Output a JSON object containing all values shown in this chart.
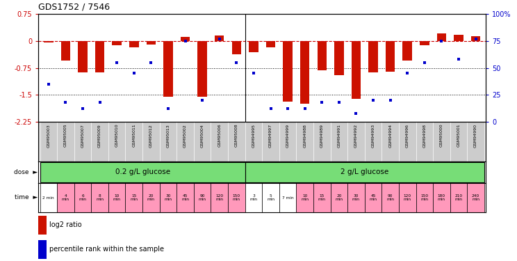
{
  "title": "GDS1752 / 7546",
  "samples": [
    "GSM95003",
    "GSM95005",
    "GSM95007",
    "GSM95009",
    "GSM95010",
    "GSM95011",
    "GSM95012",
    "GSM95013",
    "GSM95002",
    "GSM95004",
    "GSM95006",
    "GSM95008",
    "GSM94995",
    "GSM94997",
    "GSM94999",
    "GSM94988",
    "GSM94989",
    "GSM94991",
    "GSM94992",
    "GSM94993",
    "GSM94994",
    "GSM94996",
    "GSM94998",
    "GSM95000",
    "GSM95001",
    "GSM94990"
  ],
  "log2_ratio": [
    -0.05,
    -0.55,
    -0.88,
    -0.88,
    -0.12,
    -0.18,
    -0.1,
    -1.55,
    0.12,
    -1.55,
    0.15,
    -0.38,
    -0.32,
    -0.18,
    -1.68,
    -1.75,
    -0.82,
    -0.95,
    -1.62,
    -0.88,
    -0.85,
    -0.55,
    -0.12,
    0.2,
    0.17,
    0.14
  ],
  "percentile_rank": [
    35,
    18,
    12,
    18,
    55,
    45,
    55,
    12,
    75,
    20,
    77,
    55,
    45,
    12,
    12,
    12,
    18,
    18,
    8,
    20,
    20,
    45,
    55,
    75,
    58,
    77
  ],
  "time_labels": [
    "2 min",
    "4\nmin",
    "6\nmin",
    "8\nmin",
    "10\nmin",
    "15\nmin",
    "20\nmin",
    "30\nmin",
    "45\nmin",
    "90\nmin",
    "120\nmin",
    "150\nmin",
    "3\nmin",
    "5\nmin",
    "7 min",
    "10\nmin",
    "15\nmin",
    "20\nmin",
    "30\nmin",
    "45\nmin",
    "90\nmin",
    "120\nmin",
    "150\nmin",
    "180\nmin",
    "210\nmin",
    "240\nmin"
  ],
  "dose_groups": [
    {
      "label": "0.2 g/L glucose",
      "start": 0,
      "end": 11
    },
    {
      "label": "2 g/L glucose",
      "start": 12,
      "end": 25
    }
  ],
  "dose_color": "#77DD77",
  "time_colors": [
    "#FFFFFF",
    "#FF99BB",
    "#FF99BB",
    "#FF99BB",
    "#FF99BB",
    "#FF99BB",
    "#FF99BB",
    "#FF99BB",
    "#FF99BB",
    "#FF99BB",
    "#FF99BB",
    "#FF99BB",
    "#FFFFFF",
    "#FFFFFF",
    "#FFFFFF",
    "#FF99BB",
    "#FF99BB",
    "#FF99BB",
    "#FF99BB",
    "#FF99BB",
    "#FF99BB",
    "#FF99BB",
    "#FF99BB",
    "#FF99BB",
    "#FF99BB",
    "#FF99BB"
  ],
  "bar_color": "#CC1100",
  "dot_color": "#0000CC",
  "ref_line_color": "#CC0000",
  "ylim_left": [
    -2.25,
    0.75
  ],
  "ylim_right": [
    0,
    100
  ],
  "yticks_left": [
    0.75,
    0.0,
    -0.75,
    -1.5,
    -2.25
  ],
  "yticks_right": [
    100,
    75,
    50,
    25,
    0
  ],
  "right_ytick_labels": [
    "100%",
    "75",
    "50",
    "25",
    "0"
  ],
  "background_color": "#FFFFFF",
  "sample_bg_color": "#CCCCCC",
  "n_samples": 26,
  "bar_width": 0.55
}
